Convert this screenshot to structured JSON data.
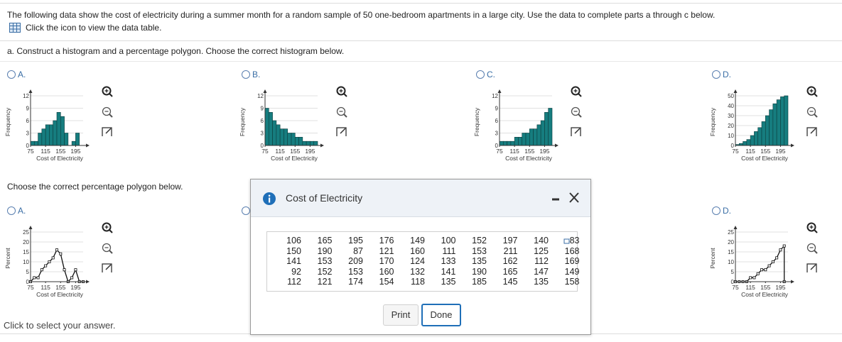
{
  "intro": "The following data show the cost of electricity during a summer month for a random sample of 50 one-bedroom apartments in a large city. Use the data to complete parts a through c below.",
  "data_link": "Click the icon to view the data table.",
  "part_a": "a. Construct a histogram and a percentage polygon. Choose the correct histogram below.",
  "histograms": {
    "options": [
      {
        "label": "A.",
        "y_label": "Frequency",
        "x_label": "Cost of Electricity",
        "xlim": [
          75,
          215
        ],
        "xticks": [
          75,
          115,
          155,
          195
        ],
        "ylim": [
          0,
          12
        ],
        "yticks": [
          0,
          3,
          6,
          9,
          12
        ],
        "bins": [
          75,
          85,
          95,
          105,
          115,
          125,
          135,
          145,
          155,
          165,
          175,
          185,
          195,
          205,
          215
        ],
        "values": [
          1,
          1,
          3,
          4,
          5,
          5,
          6,
          8,
          7,
          3,
          0,
          1,
          3,
          0
        ]
      },
      {
        "label": "B.",
        "y_label": "Frequency",
        "x_label": "Cost of Electricity",
        "xlim": [
          75,
          215
        ],
        "xticks": [
          75,
          115,
          155,
          195
        ],
        "ylim": [
          0,
          12
        ],
        "yticks": [
          0,
          3,
          6,
          9,
          12
        ],
        "bins": [
          75,
          85,
          95,
          105,
          115,
          125,
          135,
          145,
          155,
          165,
          175,
          185,
          195,
          205,
          215
        ],
        "values": [
          9,
          8,
          6,
          5,
          4,
          4,
          3,
          3,
          2,
          2,
          1,
          1,
          1,
          1
        ]
      },
      {
        "label": "C.",
        "y_label": "Frequency",
        "x_label": "Cost of Electricity",
        "xlim": [
          75,
          215
        ],
        "xticks": [
          75,
          115,
          155,
          195
        ],
        "ylim": [
          0,
          12
        ],
        "yticks": [
          0,
          3,
          6,
          9,
          12
        ],
        "bins": [
          75,
          85,
          95,
          105,
          115,
          125,
          135,
          145,
          155,
          165,
          175,
          185,
          195,
          205,
          215
        ],
        "values": [
          1,
          1,
          1,
          1,
          2,
          2,
          3,
          3,
          4,
          4,
          5,
          6,
          8,
          9
        ]
      },
      {
        "label": "D.",
        "y_label": "Frequency",
        "x_label": "Cost of Electricity",
        "xlim": [
          75,
          215
        ],
        "xticks": [
          75,
          115,
          155,
          195
        ],
        "ylim": [
          0,
          50
        ],
        "yticks": [
          0,
          10,
          20,
          30,
          40,
          50
        ],
        "bins": [
          75,
          85,
          95,
          105,
          115,
          125,
          135,
          145,
          155,
          165,
          175,
          185,
          195,
          205,
          215
        ],
        "values": [
          1,
          2,
          4,
          6,
          10,
          14,
          18,
          24,
          30,
          36,
          42,
          46,
          49,
          50
        ]
      }
    ]
  },
  "polygons": {
    "prompt": "Choose the correct percentage polygon below.",
    "options": [
      {
        "label": "A.",
        "y_label": "Percent",
        "x_label": "Cost of Electricity",
        "xlim": [
          75,
          215
        ],
        "xticks": [
          75,
          115,
          155,
          195
        ],
        "ylim": [
          0,
          25
        ],
        "yticks": [
          0,
          5,
          10,
          15,
          20,
          25
        ],
        "x": [
          75,
          85,
          95,
          105,
          115,
          125,
          135,
          145,
          155,
          165,
          175,
          185,
          195,
          205,
          215
        ],
        "values": [
          0,
          2,
          2,
          6,
          8,
          10,
          12,
          16,
          14,
          6,
          0,
          2,
          6,
          0,
          0
        ]
      },
      {
        "label": "D.",
        "y_label": "Percent",
        "x_label": "Cost of Electricity",
        "xlim": [
          75,
          215
        ],
        "xticks": [
          75,
          115,
          155,
          195
        ],
        "ylim": [
          0,
          25
        ],
        "yticks": [
          0,
          5,
          10,
          15,
          20,
          25
        ],
        "x": [
          75,
          85,
          95,
          105,
          115,
          125,
          135,
          145,
          155,
          165,
          175,
          185,
          195,
          205,
          205
        ],
        "values": [
          0,
          0,
          0,
          0,
          2,
          2,
          4,
          6,
          6,
          8,
          10,
          12,
          16,
          18,
          0
        ]
      }
    ]
  },
  "dialog": {
    "title": "Cost of Electricity",
    "rows": [
      [
        106,
        165,
        195,
        176,
        149,
        100,
        152,
        197,
        140,
        83
      ],
      [
        150,
        190,
        87,
        121,
        160,
        111,
        153,
        211,
        125,
        168
      ],
      [
        141,
        153,
        209,
        170,
        124,
        133,
        135,
        162,
        112,
        169
      ],
      [
        92,
        152,
        153,
        160,
        132,
        141,
        190,
        165,
        147,
        149
      ],
      [
        112,
        121,
        174,
        154,
        118,
        135,
        185,
        145,
        135,
        158
      ]
    ],
    "buttons": [
      "Print",
      "Done"
    ]
  },
  "footer": "Click to select your answer."
}
